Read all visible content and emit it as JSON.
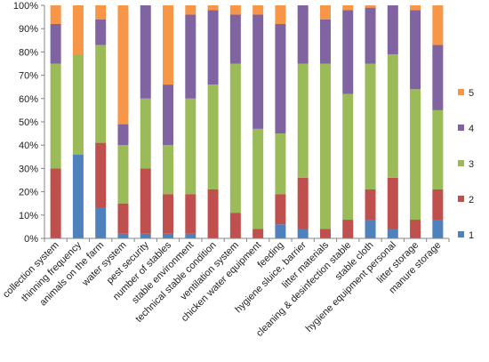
{
  "chart_data": {
    "type": "bar",
    "stacked": "percent",
    "categories": [
      "collection system",
      "thinning frequency",
      "animals on the farm",
      "water system",
      "pest security",
      "number of stables",
      "stable environment",
      "technical stable condition",
      "ventilation system",
      "chicken water equipment",
      "feeding",
      "hygiene sluice, barrier",
      "litter materials",
      "cleaning & desinfection stable",
      "stable cloth",
      "hygiene equipment personal",
      "litter storage",
      "manure storage"
    ],
    "series": [
      {
        "name": "1",
        "color": "#4F81BD",
        "values": [
          0,
          36,
          13,
          2,
          2,
          2,
          2,
          0,
          0,
          0,
          6,
          4,
          0,
          0,
          8,
          4,
          0,
          8
        ]
      },
      {
        "name": "2",
        "color": "#C0504D",
        "values": [
          30,
          0,
          28,
          13,
          28,
          17,
          17,
          21,
          11,
          4,
          13,
          22,
          4,
          8,
          13,
          22,
          8,
          13
        ]
      },
      {
        "name": "3",
        "color": "#9BBB59",
        "values": [
          45,
          43,
          42,
          25,
          30,
          21,
          41,
          45,
          64,
          43,
          26,
          49,
          71,
          54,
          54,
          53,
          56,
          34
        ]
      },
      {
        "name": "4",
        "color": "#8064A2",
        "values": [
          17,
          0,
          11,
          9,
          40,
          26,
          36,
          32,
          21,
          49,
          47,
          25,
          19,
          36,
          24,
          21,
          34,
          28
        ]
      },
      {
        "name": "5",
        "color": "#F79646",
        "values": [
          8,
          21,
          6,
          51,
          0,
          34,
          4,
          2,
          4,
          4,
          8,
          0,
          6,
          2,
          1,
          0,
          2,
          17
        ]
      }
    ],
    "y_ticks": [
      "0%",
      "10%",
      "20%",
      "30%",
      "40%",
      "50%",
      "60%",
      "70%",
      "80%",
      "90%",
      "100%"
    ],
    "ylim": [
      0,
      100
    ],
    "title": "",
    "xlabel": "",
    "ylabel": "",
    "grid": false,
    "legend": {
      "position": "right",
      "order": [
        "5",
        "4",
        "3",
        "2",
        "1"
      ]
    }
  }
}
